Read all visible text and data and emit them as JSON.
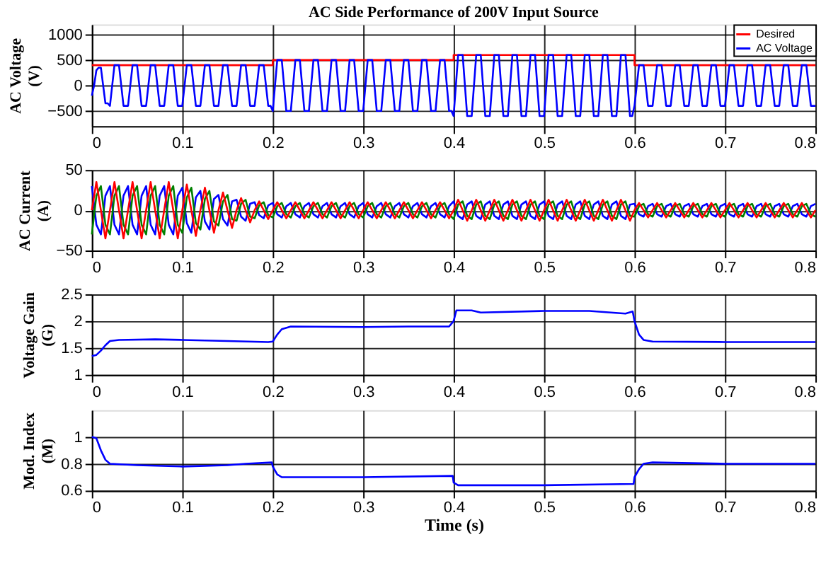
{
  "chart_data": [
    {
      "type": "line",
      "title": "AC Side Performance of 200V Input Source",
      "ylabel": "AC Voltage (V)",
      "xlim": [
        0,
        0.8
      ],
      "xticks": [
        0,
        0.1,
        0.2,
        0.3,
        0.4,
        0.5,
        0.6,
        0.7,
        0.8
      ],
      "ylim": [
        -800,
        1200
      ],
      "yticks": [
        -500,
        0,
        500,
        1000
      ],
      "grid": true,
      "legend": "top right",
      "series": [
        {
          "name": "Desired",
          "color": "#ff0000",
          "x": [
            0,
            0.2,
            0.2,
            0.4,
            0.4,
            0.6,
            0.6,
            0.8
          ],
          "values": [
            400,
            400,
            500,
            500,
            600,
            600,
            400,
            400
          ]
        },
        {
          "name": "AC Voltage",
          "color": "#0000ff",
          "x": [
            0,
            0.0025,
            0.005,
            0.0075,
            0.01,
            0.0125,
            0.015,
            0.0175,
            0.02,
            0.0225,
            0.025,
            0.0275,
            0.03,
            0.0325,
            0.035,
            0.0375,
            0.04,
            0.0425,
            0.045,
            0.0475,
            0.05,
            0.0525,
            0.055,
            0.0575,
            0.06,
            0.0625,
            0.065,
            0.0675,
            0.07,
            0.0725,
            0.075,
            0.0775,
            0.08,
            0.0825,
            0.085,
            0.0875,
            0.09,
            0.0925,
            0.095,
            0.0975,
            0.1,
            0.1025,
            0.105,
            0.1075,
            0.11,
            0.1125,
            0.115,
            0.1175,
            0.12,
            0.1225,
            0.125,
            0.1275,
            0.13,
            0.1325,
            0.135,
            0.1375,
            0.14,
            0.1425,
            0.145,
            0.1475,
            0.15,
            0.1525,
            0.155,
            0.1575,
            0.16,
            0.1625,
            0.165,
            0.1675,
            0.17,
            0.1725,
            0.175,
            0.1775,
            0.18,
            0.1825,
            0.185,
            0.1875,
            0.19,
            0.1925,
            0.195,
            0.1975,
            0.2,
            0.2025,
            0.205,
            0.2075,
            0.21,
            0.2125,
            0.215,
            0.2175,
            0.22,
            0.2225,
            0.225,
            0.2275,
            0.23,
            0.2325,
            0.235,
            0.2375,
            0.24,
            0.2425,
            0.245,
            0.2475,
            0.25,
            0.2525,
            0.255,
            0.2575,
            0.26,
            0.2625,
            0.265,
            0.2675,
            0.27,
            0.2725,
            0.275,
            0.2775,
            0.28,
            0.2825,
            0.285,
            0.2875,
            0.29,
            0.2925,
            0.295,
            0.2975,
            0.3,
            0.3025,
            0.305,
            0.3075,
            0.31,
            0.3125,
            0.315,
            0.3175,
            0.32,
            0.3225,
            0.325,
            0.3275,
            0.33,
            0.3325,
            0.335,
            0.3375,
            0.34,
            0.3425,
            0.345,
            0.3475,
            0.35,
            0.3525,
            0.355,
            0.3575,
            0.36,
            0.3625,
            0.365,
            0.3675,
            0.37,
            0.3725,
            0.375,
            0.3775,
            0.38,
            0.3825,
            0.385,
            0.3875,
            0.39,
            0.3925,
            0.395,
            0.3975,
            0.4,
            0.4025,
            0.405,
            0.4075,
            0.41,
            0.4125,
            0.415,
            0.4175,
            0.42,
            0.4225,
            0.425,
            0.4275,
            0.43,
            0.4325,
            0.435,
            0.4375,
            0.44,
            0.4425,
            0.445,
            0.4475,
            0.45,
            0.4525,
            0.455,
            0.4575,
            0.46,
            0.4625,
            0.465,
            0.4675,
            0.47,
            0.4725,
            0.475,
            0.4775,
            0.48,
            0.4825,
            0.485,
            0.4875,
            0.49,
            0.4925,
            0.495,
            0.4975,
            0.5,
            0.5025,
            0.505,
            0.5075,
            0.51,
            0.5125,
            0.515,
            0.5175,
            0.52,
            0.5225,
            0.525,
            0.5275,
            0.53,
            0.5325,
            0.535,
            0.5375,
            0.54,
            0.5425,
            0.545,
            0.5475,
            0.55,
            0.5525,
            0.555,
            0.5575,
            0.56,
            0.5625,
            0.565,
            0.5675,
            0.57,
            0.5725,
            0.575,
            0.5775,
            0.58,
            0.5825,
            0.585,
            0.5875,
            0.59,
            0.5925,
            0.595,
            0.5975,
            0.6,
            0.6025,
            0.605,
            0.6075,
            0.61,
            0.6125,
            0.615,
            0.6175,
            0.62,
            0.6225,
            0.625,
            0.6275,
            0.63,
            0.6325,
            0.635,
            0.6375,
            0.64,
            0.6425,
            0.645,
            0.6475,
            0.65,
            0.6525,
            0.655,
            0.6575,
            0.66,
            0.6625,
            0.665,
            0.6675,
            0.67,
            0.6725,
            0.675,
            0.6775,
            0.68,
            0.6825,
            0.685,
            0.6875,
            0.69,
            0.6925,
            0.695,
            0.6975,
            0.7,
            0.7025,
            0.705,
            0.7075,
            0.71,
            0.7125,
            0.715,
            0.7175,
            0.72,
            0.7225,
            0.725,
            0.7275,
            0.73,
            0.7325,
            0.735,
            0.7375,
            0.74,
            0.7425,
            0.745,
            0.7475,
            0.75,
            0.7525,
            0.755,
            0.7575,
            0.76,
            0.7625,
            0.765,
            0.7675,
            0.77,
            0.7725,
            0.775,
            0.7775,
            0.78,
            0.7825,
            0.785,
            0.7875,
            0.79,
            0.7925,
            0.795,
            0.7975,
            0.8
          ],
          "values": [
            -200,
            0,
            300,
            350,
            350,
            0,
            -350,
            -350,
            -400,
            0,
            400,
            400,
            400,
            0,
            -400,
            -400,
            -400,
            0,
            400,
            400,
            400,
            0,
            -400,
            -400,
            -400,
            0,
            400,
            400,
            400,
            0,
            -400,
            -400,
            -400,
            0,
            400,
            400,
            400,
            0,
            -400,
            -400,
            -400,
            0,
            400,
            400,
            400,
            0,
            -400,
            -400,
            -400,
            0,
            400,
            400,
            400,
            0,
            -400,
            -400,
            -400,
            0,
            400,
            400,
            400,
            0,
            -400,
            -400,
            -400,
            0,
            400,
            400,
            400,
            0,
            -400,
            -400,
            -400,
            0,
            400,
            400,
            400,
            0,
            -400,
            -400,
            -500,
            0,
            500,
            500,
            500,
            0,
            -500,
            -500,
            -500,
            0,
            500,
            500,
            500,
            0,
            -500,
            -500,
            -500,
            0,
            500,
            500,
            500,
            0,
            -500,
            -500,
            -500,
            0,
            500,
            500,
            500,
            0,
            -500,
            -500,
            -500,
            0,
            500,
            500,
            500,
            0,
            -500,
            -500,
            -500,
            0,
            500,
            500,
            500,
            0,
            -500,
            -500,
            -500,
            0,
            500,
            500,
            500,
            0,
            -500,
            -500,
            -500,
            0,
            500,
            500,
            500,
            0,
            -500,
            -500,
            -500,
            0,
            500,
            500,
            500,
            0,
            -500,
            -500,
            -500,
            0,
            500,
            500,
            500,
            0,
            -500,
            -500,
            -600,
            0,
            600,
            600,
            600,
            0,
            -600,
            -600,
            -600,
            0,
            600,
            600,
            600,
            0,
            -600,
            -600,
            -600,
            0,
            600,
            600,
            600,
            0,
            -600,
            -600,
            -600,
            0,
            600,
            600,
            600,
            0,
            -600,
            -600,
            -600,
            0,
            600,
            600,
            600,
            0,
            -600,
            -600,
            -600,
            0,
            600,
            600,
            600,
            0,
            -600,
            -600,
            -600,
            0,
            600,
            600,
            600,
            0,
            -600,
            -600,
            -600,
            0,
            600,
            600,
            600,
            0,
            -600,
            -600,
            -600,
            0,
            600,
            600,
            600,
            0,
            -600,
            -600,
            -600,
            0,
            600,
            600,
            600,
            0,
            -600,
            -600,
            -400,
            0,
            400,
            400,
            400,
            0,
            -400,
            -400,
            -400,
            0,
            400,
            400,
            400,
            0,
            -400,
            -400,
            -400,
            0,
            400,
            400,
            400,
            0,
            -400,
            -400,
            -400,
            0,
            400,
            400,
            400,
            0,
            -400,
            -400,
            -400,
            0,
            400,
            400,
            400,
            0,
            -400,
            -400,
            -400,
            0,
            400,
            400,
            400,
            0,
            -400,
            -400,
            -400,
            0,
            400,
            400,
            400,
            0,
            -400,
            -400,
            -400,
            0,
            400,
            400,
            400,
            0,
            -400,
            -400,
            -400,
            0,
            400,
            400,
            400,
            0,
            -400,
            -400,
            -400,
            0,
            400,
            400,
            400,
            0,
            -400,
            -400,
            -400
          ]
        }
      ]
    },
    {
      "type": "line",
      "ylabel": "AC Current (A)",
      "xlim": [
        0,
        0.8
      ],
      "xticks": [
        0,
        0.1,
        0.2,
        0.3,
        0.4,
        0.5,
        0.6,
        0.7,
        0.8
      ],
      "ylim": [
        -50,
        50
      ],
      "yticks": [
        -50,
        0,
        50
      ],
      "grid": true,
      "x": [
        0,
        0.005,
        0.01,
        0.015,
        0.02,
        0.025,
        0.03,
        0.035,
        0.04,
        0.045,
        0.05,
        0.055,
        0.06,
        0.065,
        0.07,
        0.075,
        0.08,
        0.085,
        0.09,
        0.095,
        0.1,
        0.105,
        0.11,
        0.115,
        0.12,
        0.125,
        0.13,
        0.135,
        0.14,
        0.145,
        0.15,
        0.155,
        0.16,
        0.165,
        0.17,
        0.175,
        0.18,
        0.185,
        0.19,
        0.195,
        0.2,
        0.205,
        0.21,
        0.215,
        0.22,
        0.225,
        0.23,
        0.235,
        0.24,
        0.245,
        0.25,
        0.255,
        0.26,
        0.265,
        0.27,
        0.275,
        0.28,
        0.285,
        0.29,
        0.295,
        0.3,
        0.305,
        0.31,
        0.315,
        0.32,
        0.325,
        0.33,
        0.335,
        0.34,
        0.345,
        0.35,
        0.355,
        0.36,
        0.365,
        0.37,
        0.375,
        0.38,
        0.385,
        0.39,
        0.395,
        0.4,
        0.405,
        0.41,
        0.415,
        0.42,
        0.425,
        0.43,
        0.435,
        0.44,
        0.445,
        0.45,
        0.455,
        0.46,
        0.465,
        0.47,
        0.475,
        0.48,
        0.485,
        0.49,
        0.495,
        0.5,
        0.505,
        0.51,
        0.515,
        0.52,
        0.525,
        0.53,
        0.535,
        0.54,
        0.545,
        0.55,
        0.555,
        0.56,
        0.565,
        0.57,
        0.575,
        0.58,
        0.585,
        0.59,
        0.595,
        0.6,
        0.605,
        0.61,
        0.615,
        0.62,
        0.625,
        0.63,
        0.635,
        0.64,
        0.645,
        0.65,
        0.655,
        0.66,
        0.665,
        0.67,
        0.675,
        0.68,
        0.685,
        0.69,
        0.695,
        0.7,
        0.705,
        0.71,
        0.715,
        0.72,
        0.725,
        0.73,
        0.735,
        0.74,
        0.745,
        0.75,
        0.755,
        0.76,
        0.765,
        0.77,
        0.775,
        0.78,
        0.785,
        0.79,
        0.795,
        0.8
      ],
      "series": [
        {
          "color": "#0000ff",
          "values": [
            30,
            -18,
            -30,
            18,
            30,
            -18,
            -30,
            18,
            30,
            -18,
            -30,
            18,
            30,
            -18,
            -30,
            18,
            30,
            -18,
            -30,
            18,
            28,
            -16,
            -28,
            16,
            24,
            -14,
            -24,
            14,
            19,
            -11,
            -19,
            11,
            13,
            -8,
            -13,
            8,
            10,
            -6,
            -10,
            6,
            9,
            -5,
            -9,
            5,
            9,
            -5,
            -9,
            5,
            9,
            -5,
            -9,
            5,
            9,
            -5,
            -9,
            5,
            9,
            -5,
            -9,
            5,
            9,
            -5,
            -9,
            5,
            9,
            -5,
            -9,
            5,
            9,
            -5,
            -9,
            5,
            9,
            -5,
            -9,
            5,
            9,
            -5,
            -9,
            5,
            11,
            -7,
            -11,
            7,
            11,
            -7,
            -11,
            7,
            11,
            -7,
            -11,
            7,
            11,
            -7,
            -11,
            7,
            11,
            -7,
            -11,
            7,
            11,
            -7,
            -11,
            7,
            11,
            -7,
            -11,
            7,
            11,
            -7,
            -11,
            7,
            11,
            -7,
            -11,
            7,
            11,
            -7,
            -11,
            7,
            8,
            -5,
            -8,
            5,
            8,
            -5,
            -8,
            5,
            8,
            -5,
            -8,
            5,
            8,
            -5,
            -8,
            5,
            8,
            -5,
            -8,
            5,
            8,
            -5,
            -8,
            5,
            8,
            -5,
            -8,
            5,
            8,
            -5,
            -8,
            5,
            8,
            -5,
            -8,
            5,
            8,
            -5,
            -8,
            5,
            8
          ]
        },
        {
          "color": "#008000",
          "values": [
            -30,
            18,
            30,
            -18,
            -30,
            18,
            30,
            -18,
            -30,
            18,
            30,
            -18,
            -30,
            18,
            30,
            -18,
            -30,
            18,
            30,
            -18,
            -28,
            16,
            28,
            -16,
            -24,
            14,
            24,
            -14,
            -19,
            11,
            19,
            -11,
            -13,
            8,
            13,
            -8,
            -10,
            6,
            10,
            -6,
            -9,
            5,
            9,
            -5,
            -9,
            5,
            9,
            -5,
            -9,
            5,
            9,
            -5,
            -9,
            5,
            9,
            -5,
            -9,
            5,
            9,
            -5,
            -9,
            5,
            9,
            -5,
            -9,
            5,
            9,
            -5,
            -9,
            5,
            9,
            -5,
            -9,
            5,
            9,
            -5,
            -9,
            5,
            9,
            -5,
            -11,
            7,
            11,
            -7,
            -11,
            7,
            11,
            -7,
            -11,
            7,
            11,
            -7,
            -11,
            7,
            11,
            -7,
            -11,
            7,
            11,
            -7,
            -11,
            7,
            11,
            -7,
            -11,
            7,
            11,
            -7,
            -11,
            7,
            11,
            -7,
            -11,
            7,
            11,
            -7,
            -11,
            7,
            11,
            -7,
            -8,
            5,
            8,
            -5,
            -8,
            5,
            8,
            -5,
            -8,
            5,
            8,
            -5,
            -8,
            5,
            8,
            -5,
            -8,
            5,
            8,
            -5,
            -8,
            5,
            8,
            -5,
            -8,
            5,
            8,
            -5,
            -8,
            5,
            8,
            -5,
            -8,
            5,
            8,
            -5,
            -8,
            5,
            8,
            -5,
            -8
          ]
        },
        {
          "color": "#ff0000",
          "values": [
            0,
            35,
            0,
            -35,
            0,
            35,
            0,
            -35,
            0,
            35,
            0,
            -35,
            0,
            35,
            0,
            -35,
            0,
            35,
            0,
            -35,
            0,
            32,
            0,
            -32,
            0,
            28,
            0,
            -28,
            0,
            22,
            0,
            -22,
            0,
            15,
            0,
            -15,
            0,
            11,
            0,
            -11,
            0,
            10,
            0,
            -10,
            0,
            10,
            0,
            -10,
            0,
            10,
            0,
            -10,
            0,
            10,
            0,
            -10,
            0,
            10,
            0,
            -10,
            0,
            10,
            0,
            -10,
            0,
            10,
            0,
            -10,
            0,
            10,
            0,
            -10,
            0,
            10,
            0,
            -10,
            0,
            10,
            0,
            -10,
            0,
            13,
            0,
            -13,
            0,
            13,
            0,
            -13,
            0,
            13,
            0,
            -13,
            0,
            13,
            0,
            -13,
            0,
            13,
            0,
            -13,
            0,
            13,
            0,
            -13,
            0,
            13,
            0,
            -13,
            0,
            13,
            0,
            -13,
            0,
            13,
            0,
            -13,
            0,
            13,
            0,
            -13,
            0,
            9,
            0,
            -9,
            0,
            9,
            0,
            -9,
            0,
            9,
            0,
            -9,
            0,
            9,
            0,
            -9,
            0,
            9,
            0,
            -9,
            0,
            9,
            0,
            -9,
            0,
            9,
            0,
            -9,
            0,
            9,
            0,
            -9,
            0,
            9,
            0,
            -9,
            0,
            9,
            0,
            -9,
            0
          ]
        }
      ]
    },
    {
      "type": "line",
      "ylabel": "Voltage Gain (G)",
      "xlim": [
        0,
        0.8
      ],
      "xticks": [
        0,
        0.1,
        0.2,
        0.3,
        0.4,
        0.5,
        0.6,
        0.7,
        0.8
      ],
      "ylim": [
        1,
        2.5
      ],
      "yticks": [
        1,
        1.5,
        2,
        2.5
      ],
      "grid": true,
      "series": [
        {
          "color": "#0000ff",
          "x": [
            0,
            0.005,
            0.01,
            0.015,
            0.02,
            0.03,
            0.07,
            0.1,
            0.15,
            0.195,
            0.2,
            0.205,
            0.21,
            0.22,
            0.3,
            0.35,
            0.395,
            0.4,
            0.403,
            0.42,
            0.43,
            0.5,
            0.55,
            0.59,
            0.598,
            0.6,
            0.605,
            0.61,
            0.62,
            0.7,
            0.8
          ],
          "values": [
            1.35,
            1.37,
            1.45,
            1.55,
            1.63,
            1.65,
            1.66,
            1.65,
            1.63,
            1.61,
            1.62,
            1.75,
            1.85,
            1.9,
            1.89,
            1.9,
            1.9,
            2.0,
            2.2,
            2.2,
            2.16,
            2.19,
            2.19,
            2.14,
            2.18,
            2.0,
            1.75,
            1.65,
            1.62,
            1.61,
            1.61
          ]
        }
      ]
    },
    {
      "type": "line",
      "ylabel": "Mod. Index (M)",
      "xlabel": "Time (s)",
      "xlim": [
        0,
        0.8
      ],
      "xticks": [
        0,
        0.1,
        0.2,
        0.3,
        0.4,
        0.5,
        0.6,
        0.7,
        0.8
      ],
      "ylim": [
        0.6,
        1.2
      ],
      "yticks": [
        0.6,
        0.8,
        1
      ],
      "grid": true,
      "series": [
        {
          "color": "#0000ff",
          "x": [
            0,
            0.005,
            0.01,
            0.015,
            0.02,
            0.05,
            0.1,
            0.15,
            0.17,
            0.199,
            0.2,
            0.205,
            0.21,
            0.3,
            0.399,
            0.4,
            0.405,
            0.5,
            0.599,
            0.6,
            0.605,
            0.61,
            0.62,
            0.7,
            0.8
          ],
          "values": [
            1.0,
            0.99,
            0.9,
            0.83,
            0.8,
            0.79,
            0.78,
            0.79,
            0.8,
            0.81,
            0.78,
            0.72,
            0.7,
            0.7,
            0.71,
            0.66,
            0.64,
            0.64,
            0.65,
            0.7,
            0.76,
            0.8,
            0.81,
            0.8,
            0.8
          ]
        }
      ]
    }
  ]
}
